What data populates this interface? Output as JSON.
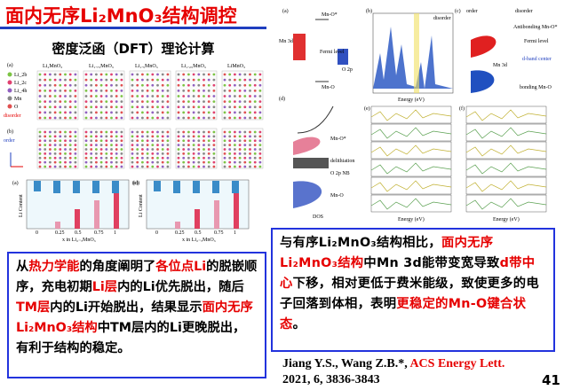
{
  "title": "面内无序Li₂MnO₃结构调控",
  "subtitle": "密度泛函（DFT）理论计算",
  "figure_left": {
    "panels": [
      "(a)",
      "(b)",
      "(c)",
      "(d)"
    ],
    "compositions": [
      "Li₂MnO₃",
      "Li₁.₇₅MnO₃",
      "Li₁.₅MnO₃",
      "Li₁.₂₅MnO₃",
      "LiMnO₃"
    ],
    "legend": [
      "Li_2b",
      "Li_2c",
      "Li_4h",
      "Mn",
      "O"
    ],
    "order": "order",
    "disorder": "disorder",
    "ylabel": "Li Content",
    "xlabel": "x in Li₂₋ₓMnO₃",
    "xticks": [
      "0",
      "0.25",
      "0.5",
      "0.75",
      "1"
    ]
  },
  "figure_right": {
    "panels": [
      "(a)",
      "(b)",
      "(c)",
      "(d)",
      "(e)",
      "(f)"
    ],
    "mn3d": "Mn 3d",
    "o2p": "O 2p",
    "mno_star": "Mn-O*",
    "mno": "Mn-O",
    "fermi": "Fermi level",
    "order": "order",
    "disorder": "disorder",
    "antibonding": "Antibonding Mn-O*",
    "bonding": "bonding Mn-O",
    "dband": "d-band center",
    "delithiation": "delithiation",
    "o2pnb": "O 2p NB",
    "dos": "DOS",
    "energy": "Energy (eV)"
  },
  "text_left": [
    {
      "text": "从"
    },
    {
      "text": "热力学能",
      "color": "#e60000"
    },
    {
      "text": "的角度阐明了"
    },
    {
      "text": "各位点Li",
      "color": "#e60000"
    },
    {
      "text": "的脱嵌顺序，充电初期"
    },
    {
      "text": "Li层",
      "color": "#e60000"
    },
    {
      "text": "内的Li优先脱出，随后"
    },
    {
      "text": "TM层",
      "color": "#e60000"
    },
    {
      "text": "内的Li开始脱出，结果显示"
    },
    {
      "text": "面内无序Li₂MnO₃结构",
      "color": "#e60000"
    },
    {
      "text": "中TM层内的Li更晚脱出，有利于结构的稳定。"
    }
  ],
  "text_right": [
    {
      "text": "与有序Li₂MnO₃结构相比，"
    },
    {
      "text": "面内无序Li₂MnO₃结构",
      "color": "#e60000"
    },
    {
      "text": "中Mn 3d能带变宽导致"
    },
    {
      "text": "d带中心",
      "color": "#e60000"
    },
    {
      "text": "下移，相对更低于费米能级，致使更多的电子回落到体相，表明"
    },
    {
      "text": "更稳定的Mn-O键合状态",
      "color": "#e60000"
    },
    {
      "text": "。"
    }
  ],
  "citation": {
    "authors": "Jiang Y.S., Wang Z.B.*, ",
    "journal": "ACS Energy Lett.",
    "details": "2021, 6, 3836-3843"
  },
  "page_number": "41"
}
